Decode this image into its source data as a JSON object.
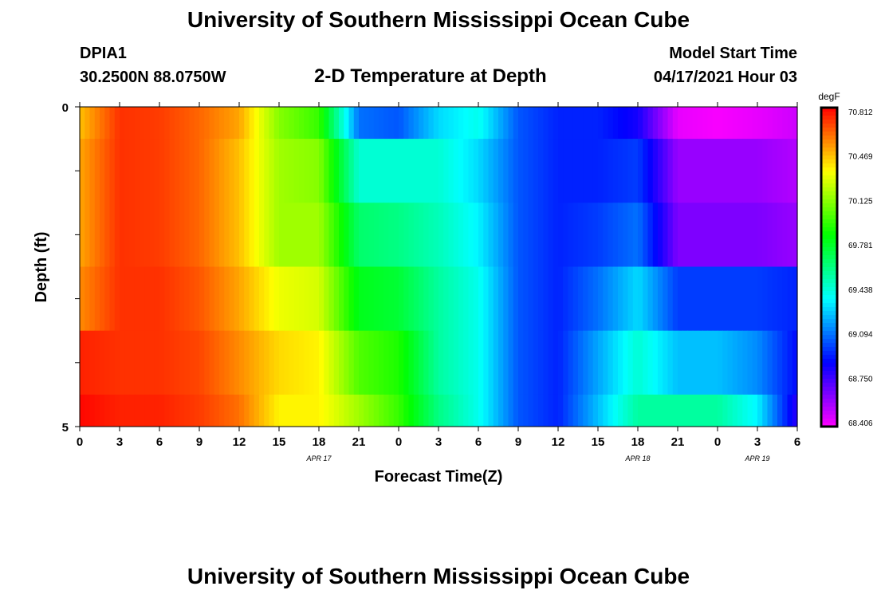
{
  "header": {
    "title": "University of Southern Mississippi Ocean Cube",
    "station_id": "DPIA1",
    "coords": "30.2500N  88.0750W",
    "chart_title": "2-D Temperature at Depth",
    "model_label": "Model Start Time",
    "model_time": "04/17/2021 Hour 03"
  },
  "footer": {
    "title": "University of Southern Mississippi Ocean Cube"
  },
  "chart_data": {
    "type": "heatmap",
    "title": "2-D Temperature at Depth",
    "xlabel": "Forecast Time(Z)",
    "ylabel": "Depth (ft)",
    "x_tick_labels": [
      "0",
      "3",
      "6",
      "9",
      "12",
      "15",
      "18",
      "21",
      "0",
      "3",
      "6",
      "9",
      "12",
      "15",
      "18",
      "21",
      "0",
      "3",
      "6"
    ],
    "date_labels": [
      "APR 17",
      "APR 18",
      "APR 19"
    ],
    "y_tick_labels": [
      "0",
      "5"
    ],
    "ylim": [
      0,
      5
    ],
    "colorbar": {
      "unit": "degF",
      "ticks": [
        "70.812",
        "70.469",
        "70.125",
        "69.781",
        "69.438",
        "69.094",
        "68.750",
        "68.406"
      ],
      "range": [
        68.406,
        70.812
      ]
    },
    "depth_layers": [
      {
        "top": 0.0,
        "bottom": 0.5
      },
      {
        "top": 0.5,
        "bottom": 1.5
      },
      {
        "top": 1.5,
        "bottom": 2.5
      },
      {
        "top": 2.5,
        "bottom": 3.5
      },
      {
        "top": 3.5,
        "bottom": 4.5
      },
      {
        "top": 4.5,
        "bottom": 5.0
      }
    ],
    "forecast_hours": [
      0,
      3,
      6,
      9,
      12,
      15,
      18,
      21,
      24,
      27,
      30,
      33,
      36,
      39,
      42,
      45,
      48,
      51,
      54
    ],
    "values": [
      [
        70.45,
        70.72,
        70.7,
        70.62,
        70.5,
        70.1,
        69.95,
        69.1,
        69.05,
        69.3,
        69.4,
        69.05,
        68.95,
        68.95,
        68.85,
        68.45,
        68.42,
        68.45,
        68.5
      ],
      [
        70.5,
        70.72,
        70.7,
        70.62,
        70.45,
        70.15,
        70.1,
        69.45,
        69.45,
        69.45,
        69.3,
        69.05,
        68.95,
        68.95,
        69.0,
        68.6,
        68.6,
        68.6,
        68.55
      ],
      [
        70.5,
        70.72,
        70.7,
        70.62,
        70.45,
        70.15,
        70.15,
        69.65,
        69.6,
        69.5,
        69.35,
        69.05,
        68.95,
        69.0,
        69.1,
        68.65,
        68.65,
        68.65,
        68.6
      ],
      [
        70.55,
        70.72,
        70.72,
        70.65,
        70.5,
        70.3,
        70.25,
        69.8,
        69.75,
        69.55,
        69.4,
        69.05,
        68.95,
        69.1,
        69.3,
        69.0,
        69.0,
        69.0,
        68.95
      ],
      [
        70.75,
        70.72,
        70.72,
        70.68,
        70.55,
        70.4,
        70.35,
        70.0,
        69.9,
        69.55,
        69.4,
        69.05,
        68.95,
        69.2,
        69.45,
        69.25,
        69.25,
        69.15,
        68.9
      ],
      [
        70.8,
        70.75,
        70.75,
        70.7,
        70.6,
        70.35,
        70.35,
        70.15,
        69.95,
        69.6,
        69.4,
        69.05,
        68.95,
        69.25,
        69.55,
        69.55,
        69.55,
        69.35,
        68.8
      ]
    ]
  }
}
